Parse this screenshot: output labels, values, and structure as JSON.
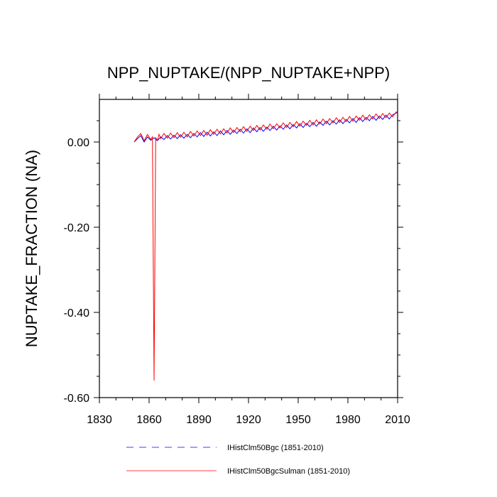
{
  "chart_data": {
    "type": "line",
    "title": "NPP_NUPTAKE/(NPP_NUPTAKE+NPP)",
    "xlabel": "",
    "ylabel": "NUPTAKE_FRACTION  (NA)",
    "xlim": [
      1830,
      2010
    ],
    "ylim": [
      -0.6,
      0.1
    ],
    "x_ticks": [
      1830,
      1860,
      1890,
      1920,
      1950,
      1980,
      2010
    ],
    "x_tick_labels": [
      "1830",
      "1860",
      "1890",
      "1920",
      "1950",
      "1980",
      "2010"
    ],
    "y_ticks": [
      -0.6,
      -0.4,
      -0.2,
      0.0
    ],
    "y_tick_labels": [
      "-0.60",
      "-0.40",
      "-0.20",
      "0.00"
    ],
    "series": [
      {
        "name": "IHistClm50Bgc (1851-2010)",
        "color": "#0000ff",
        "style": "dashed",
        "x": [
          1851,
          1853,
          1855,
          1857,
          1859,
          1861,
          1863,
          1865,
          1867,
          1869,
          1871,
          1873,
          1875,
          1877,
          1879,
          1881,
          1883,
          1885,
          1887,
          1889,
          1891,
          1893,
          1895,
          1897,
          1899,
          1901,
          1903,
          1905,
          1907,
          1909,
          1911,
          1913,
          1915,
          1917,
          1919,
          1921,
          1923,
          1925,
          1927,
          1929,
          1931,
          1933,
          1935,
          1937,
          1939,
          1941,
          1943,
          1945,
          1947,
          1949,
          1951,
          1953,
          1955,
          1957,
          1959,
          1961,
          1963,
          1965,
          1967,
          1969,
          1971,
          1973,
          1975,
          1977,
          1979,
          1981,
          1983,
          1985,
          1987,
          1989,
          1991,
          1993,
          1995,
          1997,
          1999,
          2001,
          2003,
          2005,
          2007,
          2009,
          2010
        ],
        "y": [
          0.0,
          0.008,
          0.015,
          0.0,
          0.012,
          0.004,
          0.01,
          0.003,
          0.012,
          0.006,
          0.015,
          0.007,
          0.016,
          0.008,
          0.017,
          0.009,
          0.018,
          0.01,
          0.02,
          0.012,
          0.022,
          0.013,
          0.023,
          0.014,
          0.024,
          0.015,
          0.026,
          0.017,
          0.027,
          0.018,
          0.028,
          0.02,
          0.03,
          0.021,
          0.031,
          0.022,
          0.033,
          0.024,
          0.034,
          0.025,
          0.035,
          0.027,
          0.037,
          0.028,
          0.038,
          0.03,
          0.04,
          0.031,
          0.041,
          0.033,
          0.043,
          0.034,
          0.044,
          0.036,
          0.046,
          0.037,
          0.047,
          0.039,
          0.049,
          0.04,
          0.05,
          0.042,
          0.052,
          0.043,
          0.053,
          0.045,
          0.055,
          0.046,
          0.057,
          0.048,
          0.058,
          0.05,
          0.06,
          0.051,
          0.061,
          0.053,
          0.063,
          0.054,
          0.064,
          0.068,
          0.069
        ]
      },
      {
        "name": "IHistClm50BgcSulman (1851-2010)",
        "color": "#ff0000",
        "style": "solid",
        "x": [
          1851,
          1853,
          1855,
          1857,
          1859,
          1861,
          1862,
          1863,
          1864,
          1865,
          1866,
          1867,
          1869,
          1871,
          1873,
          1875,
          1877,
          1879,
          1881,
          1883,
          1885,
          1887,
          1889,
          1891,
          1893,
          1895,
          1897,
          1899,
          1901,
          1903,
          1905,
          1907,
          1909,
          1911,
          1913,
          1915,
          1917,
          1919,
          1921,
          1923,
          1925,
          1927,
          1929,
          1931,
          1933,
          1935,
          1937,
          1939,
          1941,
          1943,
          1945,
          1947,
          1949,
          1951,
          1953,
          1955,
          1957,
          1959,
          1961,
          1963,
          1965,
          1967,
          1969,
          1971,
          1973,
          1975,
          1977,
          1979,
          1981,
          1983,
          1985,
          1987,
          1989,
          1991,
          1993,
          1995,
          1997,
          1999,
          2001,
          2003,
          2005,
          2007,
          2009,
          2010
        ],
        "y": [
          0.0,
          0.012,
          0.02,
          0.003,
          0.018,
          0.006,
          0.012,
          -0.56,
          0.01,
          0.004,
          0.018,
          0.008,
          0.02,
          0.009,
          0.021,
          0.01,
          0.022,
          0.011,
          0.023,
          0.012,
          0.025,
          0.014,
          0.026,
          0.015,
          0.027,
          0.016,
          0.029,
          0.018,
          0.03,
          0.019,
          0.031,
          0.021,
          0.033,
          0.022,
          0.034,
          0.024,
          0.036,
          0.025,
          0.037,
          0.027,
          0.039,
          0.028,
          0.04,
          0.03,
          0.042,
          0.031,
          0.043,
          0.033,
          0.045,
          0.034,
          0.046,
          0.036,
          0.048,
          0.037,
          0.049,
          0.039,
          0.051,
          0.04,
          0.052,
          0.042,
          0.054,
          0.043,
          0.055,
          0.045,
          0.057,
          0.046,
          0.058,
          0.048,
          0.06,
          0.049,
          0.061,
          0.051,
          0.063,
          0.052,
          0.064,
          0.054,
          0.066,
          0.055,
          0.067,
          0.057,
          0.068,
          0.059,
          0.07,
          0.071
        ]
      }
    ],
    "legend_placement": "bottom",
    "grid": false
  }
}
